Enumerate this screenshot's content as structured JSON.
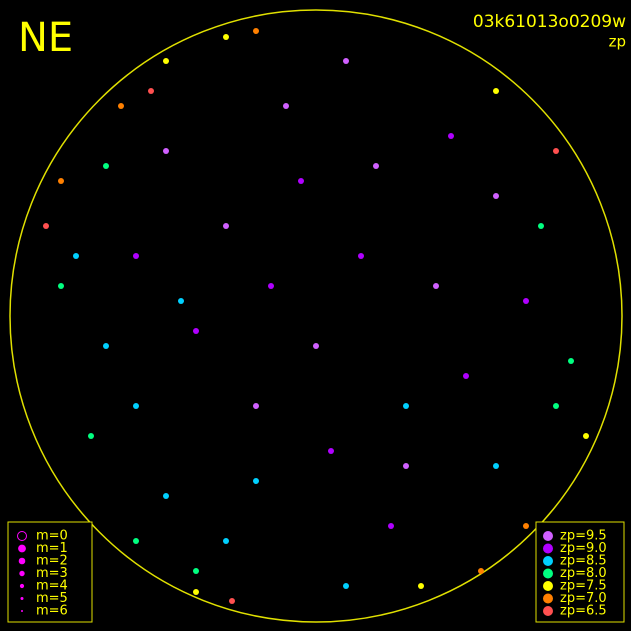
{
  "chart_data": {
    "type": "scatter",
    "corner_label": "NE",
    "title": "03k61013o0209w",
    "subtitle": "zp",
    "xlim": [
      -1,
      1
    ],
    "ylim": [
      -1,
      1
    ],
    "m_legend": [
      "m=0",
      "m=1",
      "m=2",
      "m=3",
      "m=4",
      "m=5",
      "m=6"
    ],
    "series": [
      {
        "name": "zp=9.5",
        "color": "#d060ff",
        "x": [
          -0.1,
          0.2,
          -0.3,
          0.4,
          0.0,
          -0.5,
          0.6,
          0.1,
          -0.2,
          0.3
        ],
        "y": [
          0.7,
          0.5,
          0.3,
          0.1,
          -0.1,
          0.55,
          0.4,
          0.85,
          -0.3,
          -0.5
        ]
      },
      {
        "name": "zp=9.0",
        "color": "#b000ff",
        "x": [
          0.15,
          -0.05,
          0.5,
          -0.4,
          0.25,
          0.7,
          -0.15,
          0.05,
          0.45,
          -0.6
        ],
        "y": [
          0.2,
          0.45,
          -0.2,
          -0.05,
          -0.7,
          0.05,
          0.1,
          -0.45,
          0.6,
          0.2
        ]
      },
      {
        "name": "zp=8.5",
        "color": "#00d0ff",
        "x": [
          -0.6,
          -0.7,
          -0.5,
          -0.3,
          -0.8,
          0.1,
          0.6,
          -0.45,
          0.3,
          -0.2
        ],
        "y": [
          -0.3,
          -0.1,
          -0.6,
          -0.75,
          0.2,
          -0.9,
          -0.5,
          0.05,
          -0.3,
          -0.55
        ]
      },
      {
        "name": "zp=8.0",
        "color": "#00ff80",
        "x": [
          -0.75,
          -0.6,
          -0.85,
          0.8,
          -0.4,
          0.75,
          -0.7,
          0.85
        ],
        "y": [
          -0.4,
          -0.75,
          0.1,
          -0.3,
          -0.85,
          0.3,
          0.5,
          -0.15
        ]
      },
      {
        "name": "zp=7.5",
        "color": "#ffff00",
        "x": [
          -0.5,
          0.6,
          -0.3,
          0.9,
          -0.4,
          0.35
        ],
        "y": [
          0.85,
          0.75,
          0.93,
          -0.4,
          -0.92,
          -0.9
        ]
      },
      {
        "name": "zp=7.0",
        "color": "#ff8000",
        "x": [
          -0.2,
          0.7,
          -0.85,
          0.55,
          -0.65
        ],
        "y": [
          0.95,
          -0.7,
          0.45,
          -0.85,
          0.7
        ]
      },
      {
        "name": "zp=6.5",
        "color": "#ff5050",
        "x": [
          -0.55,
          -0.9,
          0.8,
          -0.28
        ],
        "y": [
          0.75,
          0.3,
          0.55,
          -0.95
        ]
      }
    ]
  }
}
